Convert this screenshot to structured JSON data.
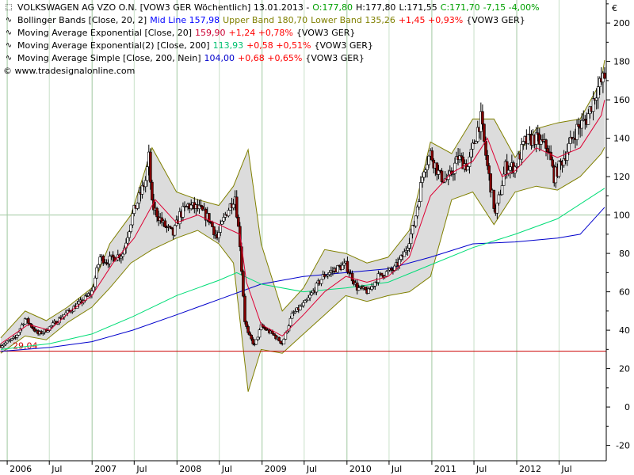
{
  "header": {
    "instrument": "VOLKSWAGEN AG VZO O.N. [VOW3 GER  Wöchentlich] 13.01.2013 -",
    "ohlc_o": "O:177,80",
    "ohlc_h": "H:177,80",
    "ohlc_l": "L:171,55",
    "ohlc_c": "C:171,70",
    "change": "-7,15 -4,00%"
  },
  "indicators": [
    {
      "label": "Bollinger Bands [Close, 20, 2]",
      "parts": [
        {
          "text": "Mid Line 157,98",
          "color": "#0000ff"
        },
        {
          "text": "Upper Band 180,70",
          "color": "#808000"
        },
        {
          "text": "Lower Band 135,26",
          "color": "#808000"
        },
        {
          "text": "+1,45 +0,93%",
          "color": "#ff0000"
        },
        {
          "text": "{VOW3 GER}",
          "color": "#000000"
        }
      ]
    },
    {
      "label": "Moving Average Exponential [Close, 20]",
      "parts": [
        {
          "text": "159,90",
          "color": "#cc0033"
        },
        {
          "text": "+1,24 +0,78%",
          "color": "#ff0000"
        },
        {
          "text": "{VOW3 GER}",
          "color": "#000000"
        }
      ]
    },
    {
      "label": "Moving Average Exponential(2) [Close, 200]",
      "parts": [
        {
          "text": "113,93",
          "color": "#00c070"
        },
        {
          "text": "+0,58 +0,51%",
          "color": "#ff0000"
        },
        {
          "text": "{VOW3 GER}",
          "color": "#000000"
        }
      ]
    },
    {
      "label": "Moving Average Simple [Close, 200, Nein]",
      "parts": [
        {
          "text": "104,00",
          "color": "#0000cc"
        },
        {
          "text": "+0,68 +0,65%",
          "color": "#ff0000"
        },
        {
          "text": "{VOW3 GER}",
          "color": "#000000"
        }
      ]
    }
  ],
  "copyright": "© www.tradesignalonline.com",
  "currency": "€",
  "colors": {
    "up": "#ffffff",
    "down": "#800000",
    "wick": "#000000",
    "band_fill": "#dcdcdc",
    "band_line": "#808000",
    "ema20": "#dd0033",
    "ema200": "#00dd77",
    "sma200": "#0000cc",
    "hline": "#cc0000",
    "grid_major": "#a0c8a0",
    "axis": "#000000"
  },
  "chart_data": {
    "type": "candlestick",
    "frequency": "weekly",
    "xlim": [
      "2005-12-01",
      "2013-01-20"
    ],
    "ylim": [
      -28,
      212
    ],
    "y_ticks": [
      -20,
      0,
      20,
      40,
      60,
      80,
      100,
      120,
      140,
      160,
      180,
      200
    ],
    "x_ticks": [
      {
        "date": "2006-01-01",
        "label": "2006",
        "major": true
      },
      {
        "date": "2006-07-01",
        "label": "Jul",
        "major": false
      },
      {
        "date": "2007-01-01",
        "label": "2007",
        "major": true
      },
      {
        "date": "2007-07-01",
        "label": "Jul",
        "major": false
      },
      {
        "date": "2008-01-01",
        "label": "2008",
        "major": true
      },
      {
        "date": "2008-07-01",
        "label": "Jul",
        "major": false
      },
      {
        "date": "2009-01-01",
        "label": "2009",
        "major": true
      },
      {
        "date": "2009-07-01",
        "label": "Jul",
        "major": false
      },
      {
        "date": "2010-01-01",
        "label": "2010",
        "major": true
      },
      {
        "date": "2010-07-01",
        "label": "Jul",
        "major": false
      },
      {
        "date": "2011-01-01",
        "label": "2011",
        "major": true
      },
      {
        "date": "2011-07-01",
        "label": "Jul",
        "major": false
      },
      {
        "date": "2012-01-01",
        "label": "2012",
        "major": true
      },
      {
        "date": "2012-07-01",
        "label": "Jul",
        "major": false
      }
    ],
    "horizontal_line": {
      "value": 29.04,
      "label": "29,04"
    },
    "grid_highlight_y": 100,
    "price_path": [
      [
        "2005-12-04",
        32
      ],
      [
        "2006-02-05",
        36
      ],
      [
        "2006-03-19",
        46
      ],
      [
        "2006-05-14",
        38
      ],
      [
        "2006-06-18",
        40
      ],
      [
        "2006-09-03",
        48
      ],
      [
        "2006-11-19",
        55
      ],
      [
        "2006-12-31",
        60
      ],
      [
        "2007-02-04",
        78
      ],
      [
        "2007-03-04",
        76
      ],
      [
        "2007-05-13",
        80
      ],
      [
        "2007-06-24",
        100
      ],
      [
        "2007-08-19",
        118
      ],
      [
        "2007-09-02",
        130
      ],
      [
        "2007-09-16",
        105
      ],
      [
        "2007-11-04",
        95
      ],
      [
        "2007-12-16",
        90
      ],
      [
        "2008-01-13",
        100
      ],
      [
        "2008-02-17",
        105
      ],
      [
        "2008-04-06",
        103
      ],
      [
        "2008-05-18",
        98
      ],
      [
        "2008-06-22",
        88
      ],
      [
        "2008-07-27",
        100
      ],
      [
        "2008-09-07",
        110
      ],
      [
        "2008-09-28",
        85
      ],
      [
        "2008-10-19",
        45
      ],
      [
        "2008-11-02",
        38
      ],
      [
        "2008-11-30",
        32
      ],
      [
        "2008-12-28",
        42
      ],
      [
        "2009-02-15",
        38
      ],
      [
        "2009-03-29",
        33
      ],
      [
        "2009-05-10",
        48
      ],
      [
        "2009-07-12",
        55
      ],
      [
        "2009-09-20",
        68
      ],
      [
        "2009-11-15",
        72
      ],
      [
        "2009-12-27",
        74
      ],
      [
        "2010-02-14",
        62
      ],
      [
        "2010-04-04",
        60
      ],
      [
        "2010-05-16",
        68
      ],
      [
        "2010-07-25",
        72
      ],
      [
        "2010-09-05",
        80
      ],
      [
        "2010-10-17",
        95
      ],
      [
        "2010-11-28",
        125
      ],
      [
        "2010-12-26",
        132
      ],
      [
        "2011-02-06",
        120
      ],
      [
        "2011-03-13",
        118
      ],
      [
        "2011-04-24",
        130
      ],
      [
        "2011-06-05",
        125
      ],
      [
        "2011-07-17",
        145
      ],
      [
        "2011-07-31",
        150
      ],
      [
        "2011-08-28",
        125
      ],
      [
        "2011-10-02",
        100
      ],
      [
        "2011-11-13",
        125
      ],
      [
        "2011-12-25",
        125
      ],
      [
        "2012-02-05",
        138
      ],
      [
        "2012-03-18",
        140
      ],
      [
        "2012-05-13",
        135
      ],
      [
        "2012-06-10",
        120
      ],
      [
        "2012-07-22",
        130
      ],
      [
        "2012-09-16",
        145
      ],
      [
        "2012-10-28",
        150
      ],
      [
        "2012-12-09",
        165
      ],
      [
        "2013-01-13",
        172
      ]
    ],
    "ema20": [
      [
        "2005-12-04",
        33
      ],
      [
        "2006-04-02",
        43
      ],
      [
        "2006-07-02",
        40
      ],
      [
        "2006-10-01",
        50
      ],
      [
        "2006-12-31",
        58
      ],
      [
        "2007-04-01",
        75
      ],
      [
        "2007-07-01",
        88
      ],
      [
        "2007-09-30",
        108
      ],
      [
        "2007-12-30",
        96
      ],
      [
        "2008-03-30",
        100
      ],
      [
        "2008-06-29",
        95
      ],
      [
        "2008-09-28",
        90
      ],
      [
        "2008-10-26",
        65
      ],
      [
        "2008-12-28",
        43
      ],
      [
        "2009-03-29",
        37
      ],
      [
        "2009-06-28",
        48
      ],
      [
        "2009-09-27",
        60
      ],
      [
        "2009-12-27",
        68
      ],
      [
        "2010-03-28",
        65
      ],
      [
        "2010-06-27",
        68
      ],
      [
        "2010-09-26",
        78
      ],
      [
        "2010-12-26",
        110
      ],
      [
        "2011-03-27",
        122
      ],
      [
        "2011-06-26",
        128
      ],
      [
        "2011-08-28",
        140
      ],
      [
        "2011-10-30",
        120
      ],
      [
        "2011-12-25",
        123
      ],
      [
        "2012-03-25",
        135
      ],
      [
        "2012-06-24",
        130
      ],
      [
        "2012-09-30",
        135
      ],
      [
        "2012-12-30",
        152
      ],
      [
        "2013-01-13",
        159.9
      ]
    ],
    "ema200": [
      [
        "2005-12-04",
        30
      ],
      [
        "2006-07-02",
        33
      ],
      [
        "2006-12-31",
        38
      ],
      [
        "2007-06-24",
        47
      ],
      [
        "2007-12-30",
        58
      ],
      [
        "2008-06-29",
        66
      ],
      [
        "2008-09-14",
        70
      ],
      [
        "2008-12-28",
        64
      ],
      [
        "2009-06-28",
        60
      ],
      [
        "2009-12-27",
        62
      ],
      [
        "2010-06-27",
        65
      ],
      [
        "2010-12-26",
        74
      ],
      [
        "2011-06-26",
        83
      ],
      [
        "2011-12-25",
        90
      ],
      [
        "2012-06-24",
        98
      ],
      [
        "2013-01-13",
        113.93
      ]
    ],
    "sma200": [
      [
        "2005-12-04",
        29
      ],
      [
        "2006-07-02",
        31
      ],
      [
        "2006-12-31",
        34
      ],
      [
        "2007-06-24",
        40
      ],
      [
        "2007-12-30",
        48
      ],
      [
        "2008-06-29",
        56
      ],
      [
        "2008-12-28",
        64
      ],
      [
        "2009-06-28",
        68
      ],
      [
        "2009-12-27",
        70
      ],
      [
        "2010-06-27",
        72
      ],
      [
        "2010-12-26",
        78
      ],
      [
        "2011-06-26",
        85
      ],
      [
        "2011-12-25",
        86
      ],
      [
        "2012-06-24",
        88
      ],
      [
        "2012-09-30",
        90
      ],
      [
        "2013-01-13",
        104
      ]
    ],
    "bollinger_upper": [
      [
        "2005-12-04",
        36
      ],
      [
        "2006-03-19",
        50
      ],
      [
        "2006-06-18",
        45
      ],
      [
        "2006-09-17",
        52
      ],
      [
        "2006-12-31",
        62
      ],
      [
        "2007-03-18",
        85
      ],
      [
        "2007-06-17",
        100
      ],
      [
        "2007-09-16",
        135
      ],
      [
        "2007-12-30",
        112
      ],
      [
        "2008-03-30",
        108
      ],
      [
        "2008-06-29",
        105
      ],
      [
        "2008-08-31",
        115
      ],
      [
        "2008-11-02",
        134
      ],
      [
        "2008-12-28",
        85
      ],
      [
        "2009-03-29",
        50
      ],
      [
        "2009-06-28",
        62
      ],
      [
        "2009-09-27",
        82
      ],
      [
        "2009-12-27",
        80
      ],
      [
        "2010-03-28",
        75
      ],
      [
        "2010-06-27",
        78
      ],
      [
        "2010-09-26",
        92
      ],
      [
        "2010-12-26",
        138
      ],
      [
        "2011-03-27",
        132
      ],
      [
        "2011-06-26",
        150
      ],
      [
        "2011-09-25",
        150
      ],
      [
        "2011-12-25",
        130
      ],
      [
        "2012-03-25",
        145
      ],
      [
        "2012-06-24",
        148
      ],
      [
        "2012-09-30",
        150
      ],
      [
        "2012-12-30",
        170
      ],
      [
        "2013-01-13",
        180.7
      ]
    ],
    "bollinger_lower": [
      [
        "2005-12-04",
        28
      ],
      [
        "2006-03-19",
        37
      ],
      [
        "2006-06-18",
        35
      ],
      [
        "2006-09-17",
        44
      ],
      [
        "2006-12-31",
        52
      ],
      [
        "2007-03-18",
        62
      ],
      [
        "2007-06-17",
        75
      ],
      [
        "2007-09-16",
        82
      ],
      [
        "2007-12-30",
        88
      ],
      [
        "2008-03-30",
        92
      ],
      [
        "2008-06-29",
        85
      ],
      [
        "2008-08-31",
        75
      ],
      [
        "2008-11-02",
        8
      ],
      [
        "2008-12-28",
        30
      ],
      [
        "2009-03-29",
        28
      ],
      [
        "2009-06-28",
        38
      ],
      [
        "2009-09-27",
        48
      ],
      [
        "2009-12-27",
        58
      ],
      [
        "2010-03-28",
        55
      ],
      [
        "2010-06-27",
        58
      ],
      [
        "2010-09-26",
        60
      ],
      [
        "2010-12-26",
        68
      ],
      [
        "2011-03-27",
        108
      ],
      [
        "2011-06-26",
        112
      ],
      [
        "2011-09-25",
        95
      ],
      [
        "2011-12-25",
        112
      ],
      [
        "2012-03-25",
        115
      ],
      [
        "2012-06-24",
        113
      ],
      [
        "2012-09-30",
        120
      ],
      [
        "2012-12-30",
        132
      ],
      [
        "2013-01-13",
        135.26
      ]
    ]
  }
}
